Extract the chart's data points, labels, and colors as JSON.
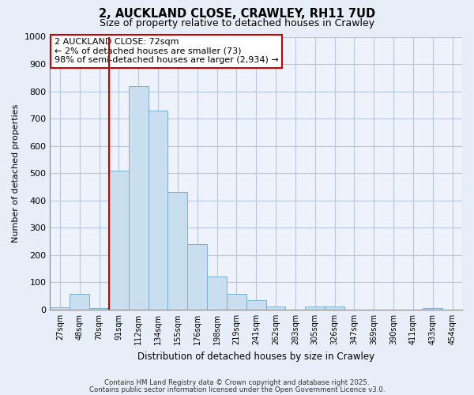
{
  "title": "2, AUCKLAND CLOSE, CRAWLEY, RH11 7UD",
  "subtitle": "Size of property relative to detached houses in Crawley",
  "xlabel": "Distribution of detached houses by size in Crawley",
  "ylabel": "Number of detached properties",
  "bin_labels": [
    "27sqm",
    "48sqm",
    "70sqm",
    "91sqm",
    "112sqm",
    "134sqm",
    "155sqm",
    "176sqm",
    "198sqm",
    "219sqm",
    "241sqm",
    "262sqm",
    "283sqm",
    "305sqm",
    "326sqm",
    "347sqm",
    "369sqm",
    "390sqm",
    "411sqm",
    "433sqm",
    "454sqm"
  ],
  "bar_heights": [
    8,
    57,
    5,
    510,
    820,
    730,
    430,
    240,
    120,
    57,
    35,
    12,
    0,
    12,
    10,
    0,
    0,
    0,
    0,
    5,
    0
  ],
  "bar_color": "#c9dff0",
  "bar_edge_color": "#7bafd4",
  "vline_color": "#cc0000",
  "annotation_title": "2 AUCKLAND CLOSE: 72sqm",
  "annotation_line1": "← 2% of detached houses are smaller (73)",
  "annotation_line2": "98% of semi-detached houses are larger (2,934) →",
  "ylim": [
    0,
    1000
  ],
  "yticks": [
    0,
    100,
    200,
    300,
    400,
    500,
    600,
    700,
    800,
    900,
    1000
  ],
  "footnote1": "Contains HM Land Registry data © Crown copyright and database right 2025.",
  "footnote2": "Contains public sector information licensed under the Open Government Licence v3.0.",
  "bg_color": "#e8eef8",
  "plot_bg_color": "#eef2fa",
  "grid_color": "#b8c8dc"
}
